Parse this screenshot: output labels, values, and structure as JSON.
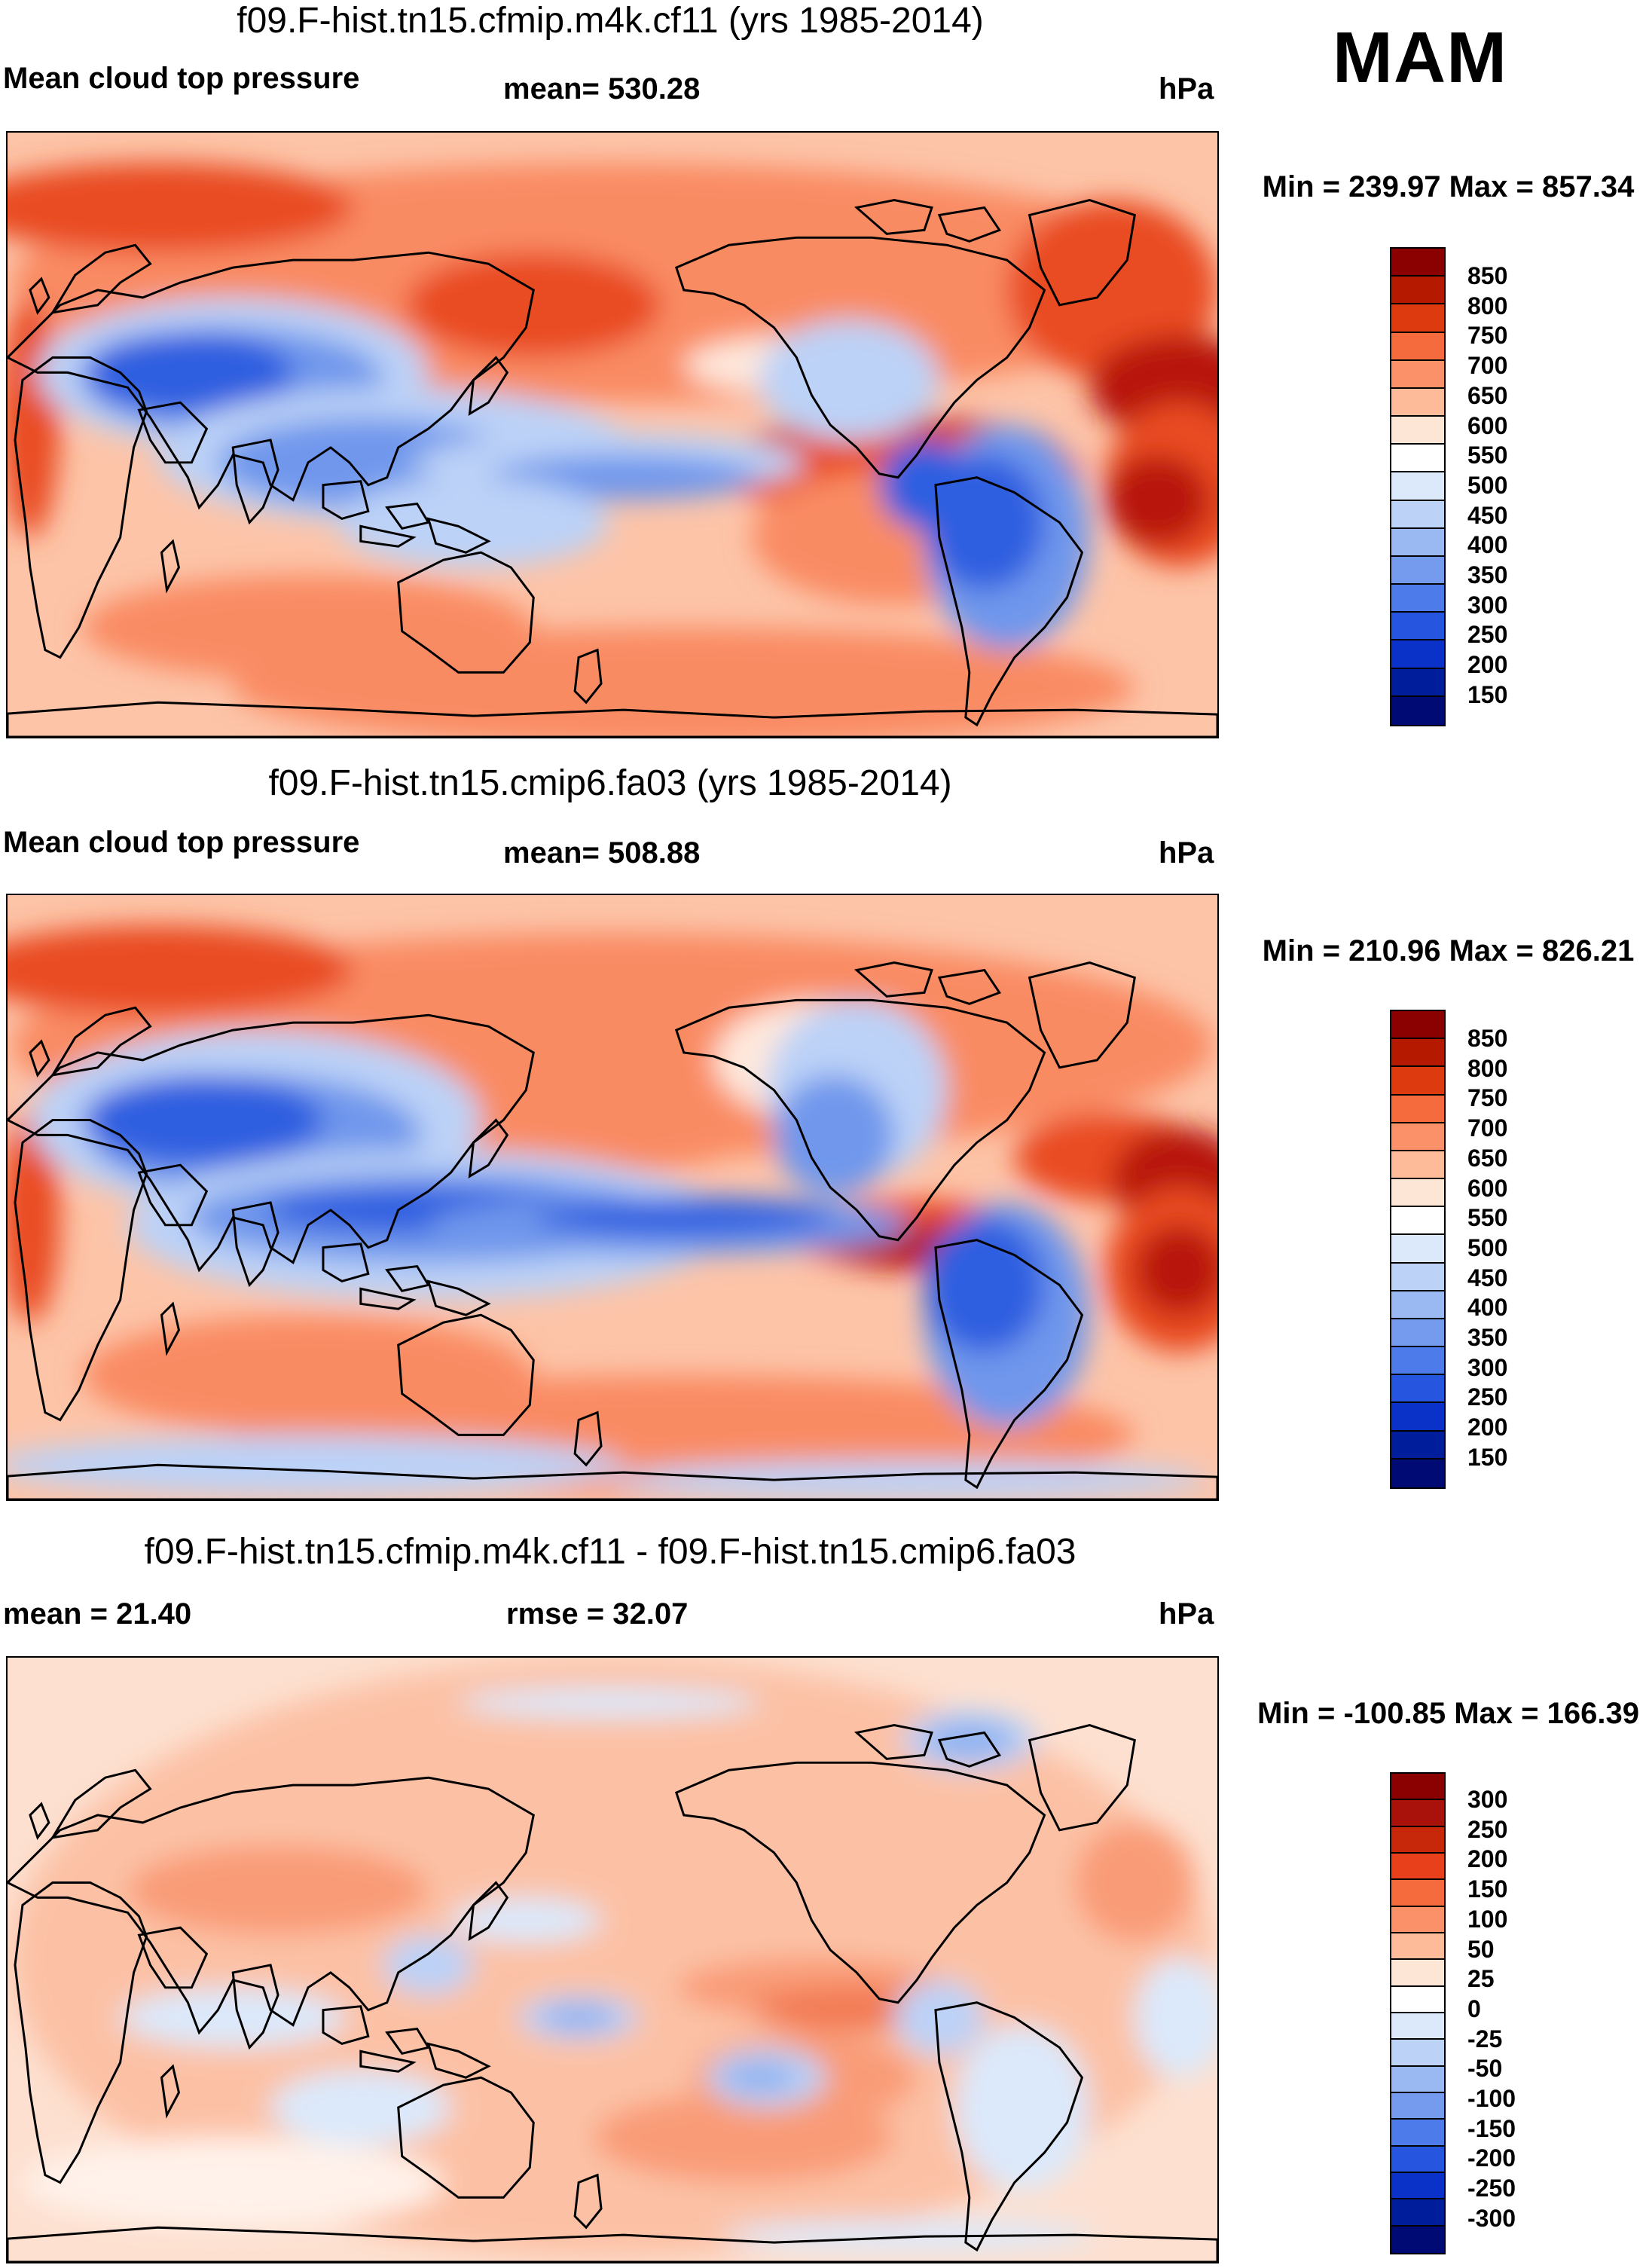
{
  "season": "MAM",
  "panels": [
    {
      "id": "panel-1",
      "title": "f09.F-hist.tn15.cfmip.m4k.cf11 (yrs 1985-2014)",
      "left_label": "Mean cloud top pressure",
      "center_label": "mean= 530.28",
      "units": "hPa",
      "minmax": "Min = 239.97 Max = 857.34",
      "colorbar": {
        "colors": [
          "#8b0000",
          "#b51a00",
          "#de3a10",
          "#f56b3d",
          "#fa9168",
          "#fdbb9a",
          "#fee6d6",
          "#ffffff",
          "#dbe9fb",
          "#bcd2f7",
          "#9ab8f2",
          "#759bee",
          "#4d7cea",
          "#2656e0",
          "#0a32c8",
          "#001e9c",
          "#000a74"
        ],
        "labels": [
          "850",
          "800",
          "750",
          "700",
          "650",
          "600",
          "550",
          "500",
          "450",
          "400",
          "350",
          "300",
          "250",
          "200",
          "150"
        ]
      }
    },
    {
      "id": "panel-2",
      "title": "f09.F-hist.tn15.cmip6.fa03 (yrs 1985-2014)",
      "left_label": "Mean cloud top pressure",
      "center_label": "mean= 508.88",
      "units": "hPa",
      "minmax": "Min = 210.96 Max = 826.21",
      "colorbar": {
        "colors": [
          "#8b0000",
          "#b51a00",
          "#de3a10",
          "#f56b3d",
          "#fa9168",
          "#fdbb9a",
          "#fee6d6",
          "#ffffff",
          "#dbe9fb",
          "#bcd2f7",
          "#9ab8f2",
          "#759bee",
          "#4d7cea",
          "#2656e0",
          "#0a32c8",
          "#001e9c",
          "#000a74"
        ],
        "labels": [
          "850",
          "800",
          "750",
          "700",
          "650",
          "600",
          "550",
          "500",
          "450",
          "400",
          "350",
          "300",
          "250",
          "200",
          "150"
        ]
      }
    },
    {
      "id": "panel-3",
      "title": "f09.F-hist.tn15.cfmip.m4k.cf11 - f09.F-hist.tn15.cmip6.fa03",
      "left_label": "mean =  21.40",
      "center_label": "rmse =  32.07",
      "units": "hPa",
      "minmax": "Min = -100.85 Max = 166.39",
      "colorbar": {
        "colors": [
          "#8b0000",
          "#a8120a",
          "#c8280a",
          "#e8401a",
          "#f56b3d",
          "#fa9168",
          "#fdbb9a",
          "#fee6d6",
          "#ffffff",
          "#dbe9fb",
          "#bcd2f7",
          "#9ab8f2",
          "#759bee",
          "#4d7cea",
          "#2656e0",
          "#0a32c8",
          "#001e9c",
          "#000a74"
        ],
        "labels": [
          "300",
          "250",
          "200",
          "150",
          "100",
          "50",
          "25",
          "0",
          "-25",
          "-50",
          "-100",
          "-150",
          "-200",
          "-250",
          "-300"
        ]
      }
    }
  ],
  "map_colors": {
    "panel-1": {
      "background": "#fdc4a8",
      "warm": "#f98b63",
      "hot": "#e94b24",
      "deep": "#b8180e",
      "cool": "#bcd2f7",
      "blue": "#6f97ec",
      "deepblue": "#2f5fe0",
      "pale": "#fee8dc"
    },
    "panel-2": {
      "background": "#fdc4a8",
      "warm": "#f98b63",
      "hot": "#e94b24",
      "deep": "#b8180e",
      "cool": "#bcd2f7",
      "blue": "#6f97ec",
      "deepblue": "#2f5fe0",
      "pale": "#fee8dc"
    },
    "panel-3": {
      "background": "#fde0d0",
      "warm": "#fcc1a5",
      "hot": "#f99b77",
      "deep": "#f27a52",
      "cool": "#dbe9fb",
      "blue": "#bcd2f7",
      "deepblue": "#8eb1f0",
      "pale": "#fff2ea"
    }
  }
}
